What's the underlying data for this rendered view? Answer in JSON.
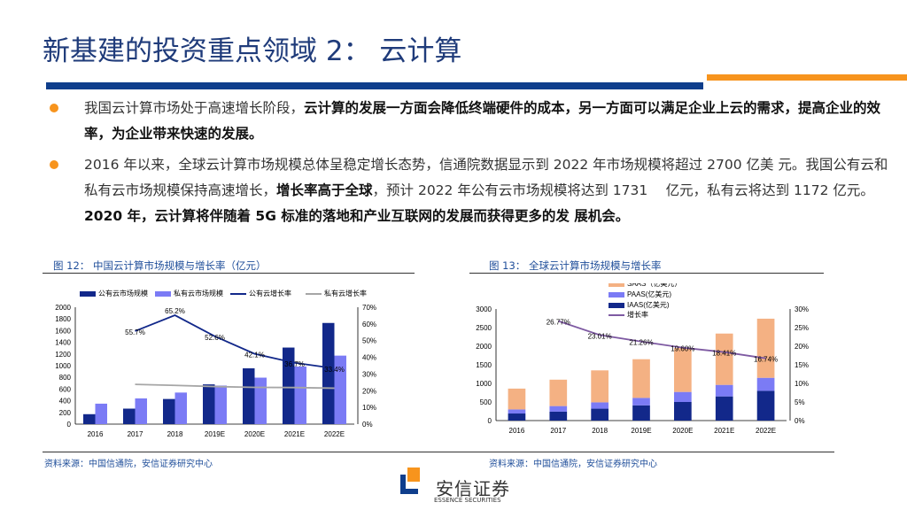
{
  "title": "新基建的投资重点领域 2： 云计算",
  "colors": {
    "primary": "#0f3e8c",
    "accent": "#f7941d"
  },
  "bullets": [
    {
      "segments": [
        {
          "text": "我国云计算市场处于高速增长阶段，",
          "bold": false
        },
        {
          "text": "云计算的发展一方面会降低终端硬件的成本，另一方面可以满足企业上云的需求，提高企业的效率，为企业带来快速的发展。",
          "bold": true
        }
      ]
    },
    {
      "segments": [
        {
          "text": "2016 年以来，全球云计算市场规模总体呈稳定增长态势，信通院数据显示到 2022 年市场规模将超过 2700 亿美 元。我国公有云和私有云市场规模保持高速增长，",
          "bold": false
        },
        {
          "text": "增长率高于全球",
          "bold": true
        },
        {
          "text": "，预计 2022 年公有云市场规模将达到 1731　 亿元，私有云将达到 1172 亿元。",
          "bold": false
        },
        {
          "text": "2020 年，云计算将伴随着 5G 标准的落地和产业互联网的发展而获得更多的发 展机会。",
          "bold": true
        }
      ]
    }
  ],
  "figure12": {
    "caption": "图 12： 中国云计算市场规模与增长率（亿元）",
    "source": "资料来源：中国信通院，安信证券研究中心"
  },
  "figure13": {
    "caption": "图 13： 全球云计算市场规模与增长率",
    "source": "资料来源：中国信通院，安信证券研究中心"
  },
  "logo": {
    "name": "安信证券",
    "en": "ESSENCE SECURITIES"
  },
  "chart_data": [
    {
      "type": "bar",
      "categories": [
        "2016",
        "2017",
        "2018",
        "2019E",
        "2020E",
        "2021E",
        "2022E"
      ],
      "ylim": [
        0,
        2000
      ],
      "yticks": [
        0,
        200,
        400,
        600,
        800,
        1000,
        1200,
        1400,
        1600,
        1800,
        2000
      ],
      "y2lim": [
        0,
        70
      ],
      "y2ticks": [
        "0%",
        "10%",
        "20%",
        "30%",
        "40%",
        "50%",
        "60%",
        "70%"
      ],
      "legend": "top",
      "series": [
        {
          "name": "公有云市场规模",
          "kind": "bar",
          "color": "#12288a",
          "values": [
            170,
            265,
            430,
            680,
            955,
            1310,
            1731
          ]
        },
        {
          "name": "私有云市场规模",
          "kind": "bar",
          "color": "#7b7bf5",
          "values": [
            350,
            440,
            540,
            660,
            795,
            985,
            1172
          ]
        },
        {
          "name": "公有云增长率",
          "kind": "line",
          "axis": "right",
          "color": "#12288a",
          "values": [
            null,
            55.7,
            65.2,
            52.6,
            42.1,
            36.7,
            33.4
          ],
          "labels": [
            "",
            "55.7%",
            "65.2%",
            "52.6%",
            "42.1%",
            "36.7%",
            "33.4%"
          ]
        },
        {
          "name": "私有云增长率",
          "kind": "line",
          "axis": "right",
          "color": "#a6a6a6",
          "values": [
            null,
            23.8,
            23.2,
            22.5,
            22.0,
            21.9,
            21.5
          ]
        }
      ]
    },
    {
      "type": "bar",
      "stacked": true,
      "categories": [
        "2016",
        "2017",
        "2018",
        "2019E",
        "2020E",
        "2021E",
        "2022E"
      ],
      "ylim": [
        0,
        3000
      ],
      "yticks": [
        0,
        500,
        1000,
        1500,
        2000,
        2500,
        3000
      ],
      "y2lim": [
        0,
        30
      ],
      "y2ticks": [
        "0%",
        "5%",
        "10%",
        "15%",
        "20%",
        "25%",
        "30%"
      ],
      "legend": "top",
      "series": [
        {
          "name": "IAAS(亿美元)",
          "kind": "bar",
          "color": "#12288a",
          "values": [
            190,
            240,
            320,
            410,
            500,
            650,
            800
          ]
        },
        {
          "name": "PAAS(亿美元)",
          "kind": "bar",
          "color": "#7b7bf5",
          "values": [
            110,
            150,
            170,
            200,
            270,
            310,
            350
          ]
        },
        {
          "name": "SAAS（亿美元）",
          "kind": "bar",
          "color": "#f4b183",
          "values": [
            560,
            710,
            860,
            1040,
            1180,
            1380,
            1590
          ]
        },
        {
          "name": "增长率",
          "kind": "line",
          "axis": "right",
          "color": "#7e5aa2",
          "values": [
            null,
            26.77,
            23.01,
            21.26,
            19.6,
            18.41,
            16.74
          ],
          "labels": [
            "",
            "26.77%",
            "23.01%",
            "21.26%",
            "19.60%",
            "18.41%",
            "16.74%"
          ]
        }
      ]
    }
  ]
}
